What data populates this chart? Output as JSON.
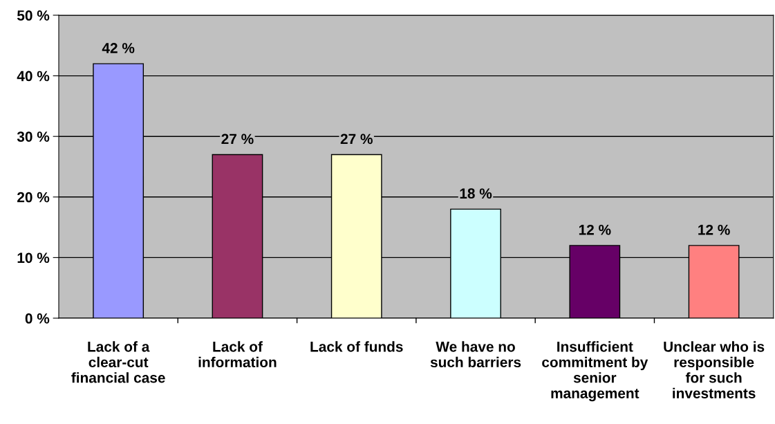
{
  "chart_data": {
    "type": "bar",
    "categories": [
      "Lack of a clear-cut financial case",
      "Lack of information",
      "Lack of funds",
      "We have no such barriers",
      "Insufficient commitment by senior management",
      "Unclear who is responsible for such investments"
    ],
    "values": [
      42,
      27,
      27,
      18,
      12,
      12
    ],
    "colors": [
      "#9999ff",
      "#993366",
      "#ffffcc",
      "#ccffff",
      "#660066",
      "#ff8080"
    ],
    "value_labels": [
      "42 %",
      "27 %",
      "27 %",
      "18 %",
      "12 %",
      "12 %"
    ],
    "ylim": [
      0,
      50
    ],
    "yticks": [
      {
        "value": 0,
        "label": "0 %"
      },
      {
        "value": 10,
        "label": "10 %"
      },
      {
        "value": 20,
        "label": "20 %"
      },
      {
        "value": 30,
        "label": "30 %"
      },
      {
        "value": 40,
        "label": "40 %"
      },
      {
        "value": 50,
        "label": "50 %"
      }
    ],
    "grid": "y"
  }
}
